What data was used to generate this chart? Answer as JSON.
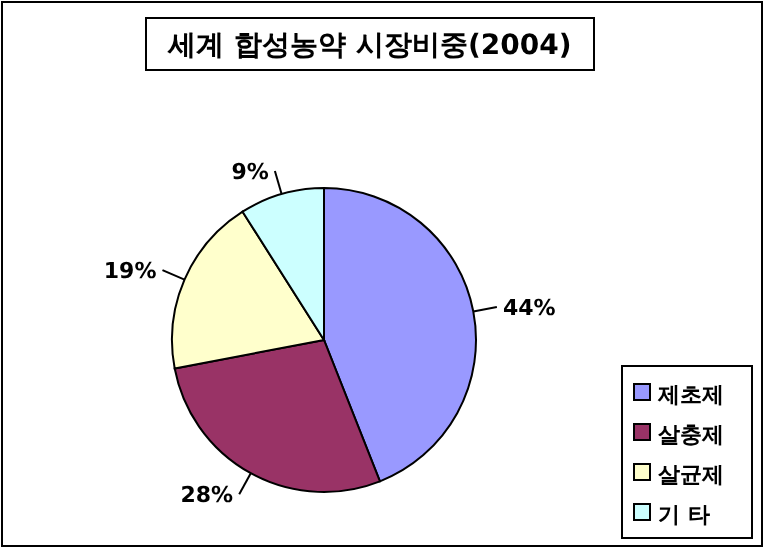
{
  "chart_data": {
    "type": "pie",
    "title": "세계 합성농약 시장비중(2004)",
    "categories": [
      "제초제",
      "살충제",
      "살균제",
      "기 타"
    ],
    "values": [
      44,
      28,
      19,
      9
    ],
    "colors": [
      "#9999ff",
      "#993366",
      "#ffffcc",
      "#ccffff"
    ],
    "value_labels": [
      "44%",
      "28%",
      "19%",
      "9%"
    ],
    "legend": "right"
  }
}
